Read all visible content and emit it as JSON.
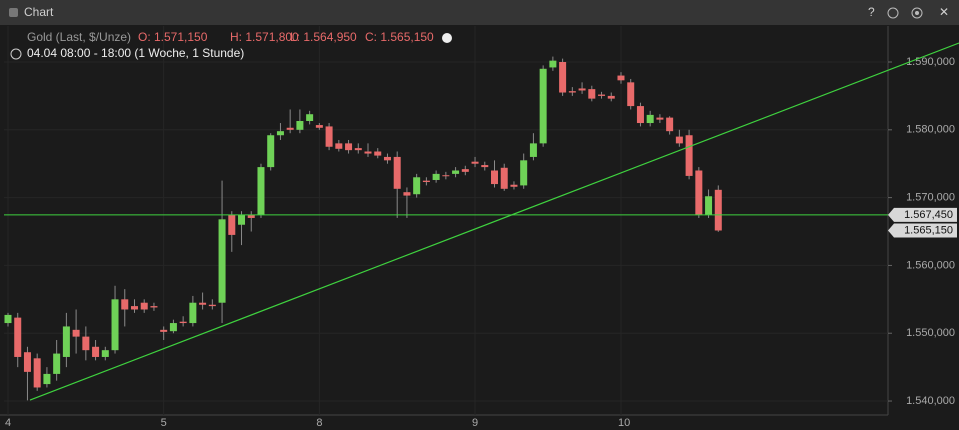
{
  "window_title": "Chart",
  "chart_data": {
    "type": "candlestick",
    "instrument": "Gold (Last, $/Unze)",
    "info": [
      "O: 1.571,150",
      "H: 1.571,800",
      "L: 1.564,950",
      "C: 1.565,150"
    ],
    "period": "04.04 08:00 - 18:00 (1 Woche, 1 Stunde)",
    "categories": [
      "4",
      null,
      null,
      null,
      null,
      null,
      null,
      null,
      null,
      null,
      null,
      null,
      null,
      null,
      null,
      null,
      "5",
      null,
      null,
      null,
      null,
      null,
      null,
      null,
      null,
      null,
      null,
      null,
      null,
      null,
      null,
      null,
      "8",
      null,
      null,
      null,
      null,
      null,
      null,
      null,
      null,
      null,
      null,
      null,
      null,
      null,
      null,
      null,
      "9",
      null,
      null,
      null,
      null,
      null,
      null,
      null,
      null,
      null,
      null,
      null,
      null,
      null,
      null,
      "10",
      null,
      null,
      null,
      null,
      null,
      null,
      null,
      null,
      null,
      null
    ],
    "open": [
      1551.5,
      1552.3,
      1547.2,
      1546.3,
      1542.5,
      1544,
      1546.5,
      1550.5,
      1549.5,
      1548,
      1546.5,
      1547.5,
      1555,
      1554,
      1554.5,
      1554,
      1550.5,
      1550.3,
      1551.7,
      1551.5,
      1554.5,
      1554.2,
      1554.5,
      1567.5,
      1566,
      1567.5,
      1567.5,
      1574.5,
      1579.2,
      1580.3,
      1580,
      1581.3,
      1580.7,
      1580.5,
      1578,
      1578,
      1577.3,
      1576.8,
      1576.8,
      1576,
      1576,
      1570.8,
      1570.5,
      1572.5,
      1572.6,
      1573.3,
      1573.5,
      1574.2,
      1575.3,
      1574.8,
      1574,
      1574.4,
      1571.9,
      1571.8,
      1576,
      1578,
      1589.2,
      1590,
      1585.7,
      1586.1,
      1586,
      1585.2,
      1585,
      1588,
      1587,
      1583.5,
      1581,
      1581.8,
      1581.8,
      1579,
      1579.2,
      1574,
      1567.5,
      1571.15
    ],
    "high": [
      1553,
      1553,
      1548,
      1547,
      1545,
      1549,
      1553,
      1553.5,
      1551,
      1549,
      1548,
      1557,
      1556.5,
      1555,
      1555,
      1554.5,
      1551,
      1552,
      1552.5,
      1555.5,
      1556,
      1555,
      1572.5,
      1568,
      1568,
      1568,
      1575,
      1579.5,
      1581,
      1583,
      1583,
      1582.8,
      1581,
      1581,
      1578.5,
      1578.5,
      1578,
      1578,
      1577.3,
      1576.5,
      1576.8,
      1571.5,
      1573.5,
      1573,
      1574,
      1573.8,
      1574.5,
      1574.7,
      1576,
      1575.3,
      1575.5,
      1575,
      1572.4,
      1576.5,
      1579.5,
      1589.5,
      1590.8,
      1590.5,
      1586.3,
      1587,
      1586.5,
      1585.6,
      1585.5,
      1588.5,
      1587.5,
      1584,
      1582.8,
      1582.3,
      1582,
      1580,
      1580,
      1574.5,
      1571.2,
      1571.8
    ],
    "low": [
      1551,
      1545,
      1540.1,
      1541.5,
      1542,
      1543,
      1545,
      1547,
      1546,
      1546,
      1546,
      1547,
      1551,
      1553,
      1553,
      1553.3,
      1549,
      1550,
      1551,
      1551,
      1553.5,
      1553.5,
      1551.5,
      1562,
      1563,
      1565,
      1567,
      1574,
      1578.5,
      1579.5,
      1579.5,
      1580.8,
      1580,
      1577,
      1576.8,
      1576.5,
      1576.5,
      1576,
      1575.8,
      1575,
      1567,
      1567,
      1570,
      1571.8,
      1572.2,
      1572.7,
      1573,
      1573.3,
      1574.5,
      1574,
      1571.5,
      1571,
      1571.2,
      1571.3,
      1575.5,
      1577.5,
      1588.7,
      1585,
      1585,
      1585.3,
      1584.2,
      1584.6,
      1584.2,
      1586.8,
      1583,
      1580.5,
      1580.5,
      1581,
      1579.3,
      1577.5,
      1572.7,
      1567,
      1567,
      1564.95
    ],
    "close": [
      1552.7,
      1546.5,
      1544.3,
      1542,
      1544,
      1547,
      1551,
      1549.5,
      1547.5,
      1546.5,
      1547.5,
      1555,
      1553.5,
      1553.5,
      1553.5,
      1553.8,
      1550.2,
      1551.5,
      1551.5,
      1554.5,
      1554.2,
      1554,
      1566.8,
      1564.5,
      1567.5,
      1567,
      1574.5,
      1579.2,
      1579.8,
      1580,
      1581.3,
      1582.3,
      1580.3,
      1577.5,
      1577.2,
      1577,
      1577,
      1576.5,
      1576.2,
      1575.5,
      1571.3,
      1570.3,
      1573,
      1572.3,
      1573.5,
      1573.2,
      1574,
      1573.8,
      1575,
      1574.5,
      1572,
      1571.3,
      1571.6,
      1575.5,
      1578,
      1589,
      1590.2,
      1585.5,
      1585.5,
      1585.8,
      1584.6,
      1585,
      1584.6,
      1587.3,
      1583.5,
      1581,
      1582.2,
      1581.5,
      1579.8,
      1578,
      1573.2,
      1567.5,
      1570.2,
      1565.15
    ],
    "up_color": "#6fd257",
    "down_color": "#e86a6a",
    "horizontal_line": {
      "value": 1567.45,
      "label": "1.567,450",
      "color": "#3fd23f"
    },
    "last_price": {
      "value": 1565.15,
      "label": "1.565,150"
    },
    "trend_line": {
      "start": 1540.15,
      "end": 1592.8,
      "color": "#3fd23f"
    },
    "ylim": [
      1537.94,
      1595.31
    ],
    "yticks": [
      {
        "value": 1540,
        "label": "1.540,000"
      },
      {
        "value": 1550,
        "label": "1.550,000"
      },
      {
        "value": 1560,
        "label": "1.560,000"
      },
      {
        "value": 1570,
        "label": "1.570,000"
      },
      {
        "value": 1580,
        "label": "1.580,000"
      },
      {
        "value": 1590,
        "label": "1.590,000"
      }
    ],
    "grid": true
  }
}
